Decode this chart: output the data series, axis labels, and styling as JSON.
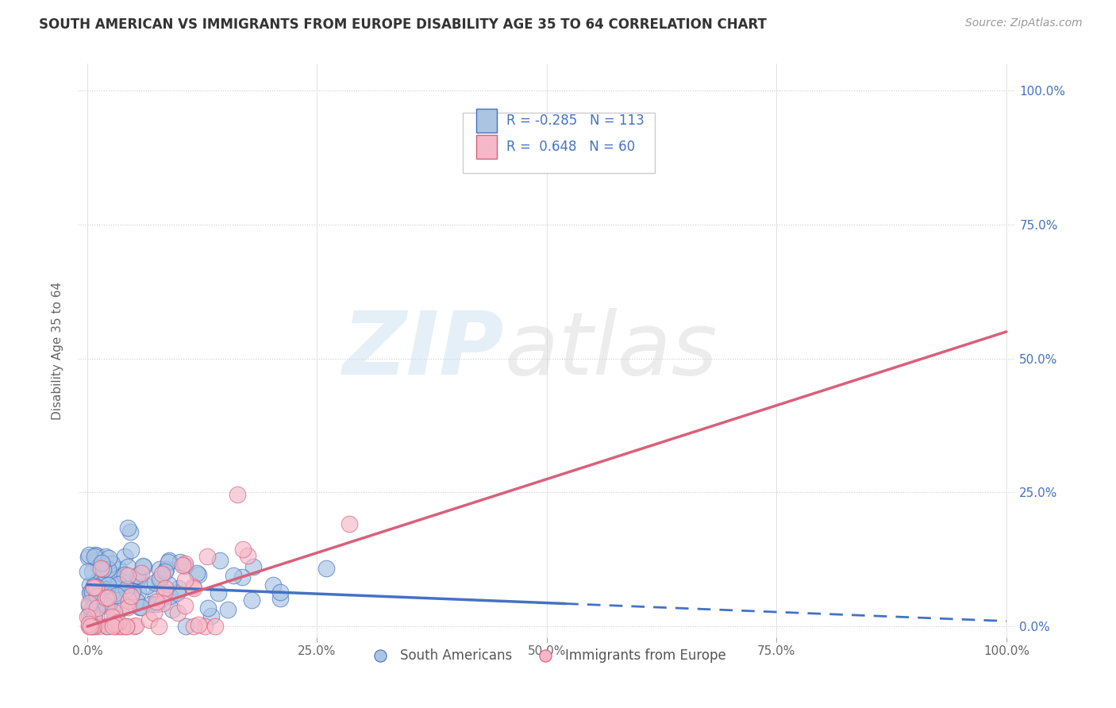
{
  "title": "SOUTH AMERICAN VS IMMIGRANTS FROM EUROPE DISABILITY AGE 35 TO 64 CORRELATION CHART",
  "source": "Source: ZipAtlas.com",
  "ylabel": "Disability Age 35 to 64",
  "series1_name": "South Americans",
  "series2_name": "Immigrants from Europe",
  "series1_R": -0.285,
  "series1_N": 113,
  "series2_R": 0.648,
  "series2_N": 60,
  "series1_color": "#aac4e2",
  "series2_color": "#f5b8c8",
  "series1_line_color": "#4472c4",
  "series2_line_color": "#d9607a",
  "background_color": "#ffffff",
  "grid_color": "#cccccc",
  "seed": 42,
  "title_fontsize": 12,
  "legend_fontsize": 12,
  "axis_fontsize": 11,
  "s1_line_start_x": 0.0,
  "s1_line_start_y": 0.078,
  "s1_line_end_x": 1.0,
  "s1_line_end_y": 0.01,
  "s2_line_start_x": 0.0,
  "s2_line_start_y": 0.0,
  "s2_line_end_x": 1.0,
  "s2_line_end_y": 0.55,
  "s1_dash_from": 0.52,
  "xlim_min": -0.01,
  "xlim_max": 1.01,
  "ylim_min": -0.02,
  "ylim_max": 1.05
}
